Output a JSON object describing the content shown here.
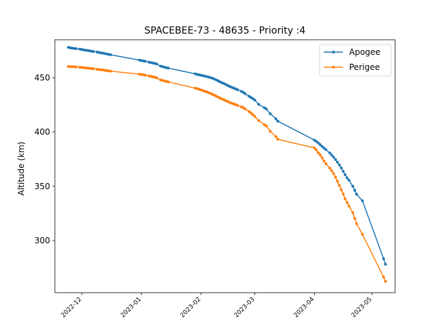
{
  "chart_data": {
    "type": "line",
    "title": "SPACEBEE-73 - 48635 - Priority :4",
    "xlabel": "",
    "ylabel": "Altitude (km)",
    "x_type": "date",
    "xlim": [
      "2022-11-17",
      "2023-05-13"
    ],
    "ylim": [
      252,
      485
    ],
    "yticks": [
      300,
      350,
      400,
      450
    ],
    "xticks": [
      "2022-12",
      "2023-01",
      "2023-02",
      "2023-03",
      "2023-04",
      "2023-05"
    ],
    "grid": false,
    "legend": "top-right",
    "series": [
      {
        "name": "Apogee",
        "color": "#1f77b4",
        "x": [
          "2022-11-24",
          "2022-11-25",
          "2022-11-26",
          "2022-11-27",
          "2022-11-28",
          "2022-11-30",
          "2022-12-01",
          "2022-12-02",
          "2022-12-03",
          "2022-12-04",
          "2022-12-05",
          "2022-12-06",
          "2022-12-07",
          "2022-12-09",
          "2022-12-10",
          "2022-12-11",
          "2022-12-12",
          "2022-12-13",
          "2022-12-14",
          "2022-12-15",
          "2022-12-16",
          "2022-12-31",
          "2023-01-01",
          "2023-01-02",
          "2023-01-03",
          "2023-01-05",
          "2023-01-06",
          "2023-01-07",
          "2023-01-08",
          "2023-01-09",
          "2023-01-11",
          "2023-01-12",
          "2023-01-13",
          "2023-01-14",
          "2023-01-15",
          "2023-01-29",
          "2023-01-30",
          "2023-01-31",
          "2023-02-01",
          "2023-02-02",
          "2023-02-03",
          "2023-02-04",
          "2023-02-05",
          "2023-02-06",
          "2023-02-07",
          "2023-02-08",
          "2023-02-09",
          "2023-02-10",
          "2023-02-11",
          "2023-02-12",
          "2023-02-13",
          "2023-02-14",
          "2023-02-15",
          "2023-02-16",
          "2023-02-17",
          "2023-02-18",
          "2023-02-19",
          "2023-02-20",
          "2023-02-22",
          "2023-02-23",
          "2023-02-24",
          "2023-02-26",
          "2023-02-27",
          "2023-02-28",
          "2023-03-01",
          "2023-03-03",
          "2023-03-06",
          "2023-03-07",
          "2023-03-09",
          "2023-03-12",
          "2023-03-13",
          "2023-04-01",
          "2023-04-02",
          "2023-04-03",
          "2023-04-04",
          "2023-04-05",
          "2023-04-06",
          "2023-04-07",
          "2023-04-09",
          "2023-04-10",
          "2023-04-11",
          "2023-04-12",
          "2023-04-13",
          "2023-04-14",
          "2023-04-15",
          "2023-04-16",
          "2023-04-17",
          "2023-04-18",
          "2023-04-19",
          "2023-04-21",
          "2023-04-22",
          "2023-04-23",
          "2023-04-26",
          "2023-05-07",
          "2023-05-08"
        ],
        "values": [
          478,
          477.6,
          477.3,
          477,
          476.8,
          476.4,
          476,
          475.7,
          475.4,
          475.1,
          474.8,
          474.5,
          474.2,
          473.6,
          473.3,
          472.9,
          472.6,
          472.2,
          471.9,
          471.5,
          471.2,
          466.2,
          465.9,
          465.5,
          465.2,
          464.3,
          463.9,
          463.5,
          463.2,
          462.7,
          460.7,
          460.3,
          459.7,
          459.3,
          458.9,
          453.6,
          453.1,
          452.7,
          452.3,
          451.9,
          451.5,
          451.1,
          450.6,
          450.1,
          449.5,
          448.8,
          448,
          447.1,
          446.2,
          445.4,
          444.6,
          443.7,
          442.8,
          442,
          441.2,
          440.5,
          439.8,
          439,
          437.5,
          436.5,
          435.3,
          433,
          431.8,
          430.8,
          429.4,
          425.5,
          422.4,
          421.2,
          416.9,
          412.1,
          410,
          392.6,
          391.4,
          390,
          388.4,
          386.7,
          385.2,
          383.8,
          380.7,
          378.8,
          376.8,
          374.6,
          372.3,
          369.6,
          366.9,
          363.8,
          360.7,
          357.8,
          355.6,
          350,
          346.3,
          342.7,
          336.7,
          283.3,
          278.2
        ]
      },
      {
        "name": "Perigee",
        "color": "#ff7f0e",
        "x": [
          "2022-11-24",
          "2022-11-25",
          "2022-11-26",
          "2022-11-27",
          "2022-11-28",
          "2022-11-30",
          "2022-12-01",
          "2022-12-02",
          "2022-12-03",
          "2022-12-04",
          "2022-12-05",
          "2022-12-06",
          "2022-12-07",
          "2022-12-09",
          "2022-12-10",
          "2022-12-11",
          "2022-12-12",
          "2022-12-13",
          "2022-12-14",
          "2022-12-15",
          "2022-12-16",
          "2022-12-31",
          "2023-01-01",
          "2023-01-02",
          "2023-01-03",
          "2023-01-05",
          "2023-01-06",
          "2023-01-07",
          "2023-01-08",
          "2023-01-09",
          "2023-01-11",
          "2023-01-12",
          "2023-01-13",
          "2023-01-14",
          "2023-01-15",
          "2023-01-29",
          "2023-01-30",
          "2023-01-31",
          "2023-02-01",
          "2023-02-02",
          "2023-02-03",
          "2023-02-04",
          "2023-02-05",
          "2023-02-06",
          "2023-02-07",
          "2023-02-08",
          "2023-02-09",
          "2023-02-10",
          "2023-02-11",
          "2023-02-12",
          "2023-02-13",
          "2023-02-14",
          "2023-02-15",
          "2023-02-16",
          "2023-02-17",
          "2023-02-18",
          "2023-02-19",
          "2023-02-20",
          "2023-02-22",
          "2023-02-23",
          "2023-02-24",
          "2023-02-26",
          "2023-02-27",
          "2023-02-28",
          "2023-03-01",
          "2023-03-03",
          "2023-03-06",
          "2023-03-07",
          "2023-03-09",
          "2023-03-12",
          "2023-03-13",
          "2023-04-01",
          "2023-04-02",
          "2023-04-03",
          "2023-04-04",
          "2023-04-05",
          "2023-04-06",
          "2023-04-07",
          "2023-04-09",
          "2023-04-10",
          "2023-04-11",
          "2023-04-12",
          "2023-04-13",
          "2023-04-14",
          "2023-04-15",
          "2023-04-16",
          "2023-04-17",
          "2023-04-18",
          "2023-04-19",
          "2023-04-21",
          "2023-04-22",
          "2023-04-23",
          "2023-04-26",
          "2023-05-07",
          "2023-05-08"
        ],
        "values": [
          460.4,
          460.3,
          460.2,
          460.1,
          460,
          459.7,
          459.5,
          459.3,
          459.1,
          458.9,
          458.7,
          458.5,
          458.3,
          457.8,
          457.6,
          457.3,
          457.1,
          456.8,
          456.6,
          456.3,
          456.1,
          453.3,
          453,
          452.7,
          452.4,
          451.6,
          451.2,
          450.8,
          450.4,
          449.9,
          448,
          447.5,
          447,
          446.6,
          446.2,
          440.4,
          439.9,
          439.4,
          438.8,
          438.2,
          437.6,
          437,
          436.2,
          435.5,
          434.7,
          433.9,
          433,
          432.1,
          431.2,
          430.4,
          429.6,
          428.8,
          428,
          427.2,
          426.5,
          425.9,
          425.3,
          424.6,
          423.2,
          422.3,
          421.2,
          418.9,
          417.5,
          416.1,
          414.4,
          410.6,
          406.8,
          405.6,
          400.8,
          395.7,
          393.3,
          385.4,
          383.6,
          381,
          378.9,
          376.2,
          373.4,
          370.8,
          366.8,
          364.3,
          361.7,
          358.3,
          354.7,
          350.8,
          346.8,
          343,
          338.4,
          335.1,
          331.8,
          325.7,
          320.4,
          315.5,
          305.7,
          266.4,
          262.5
        ]
      }
    ]
  }
}
